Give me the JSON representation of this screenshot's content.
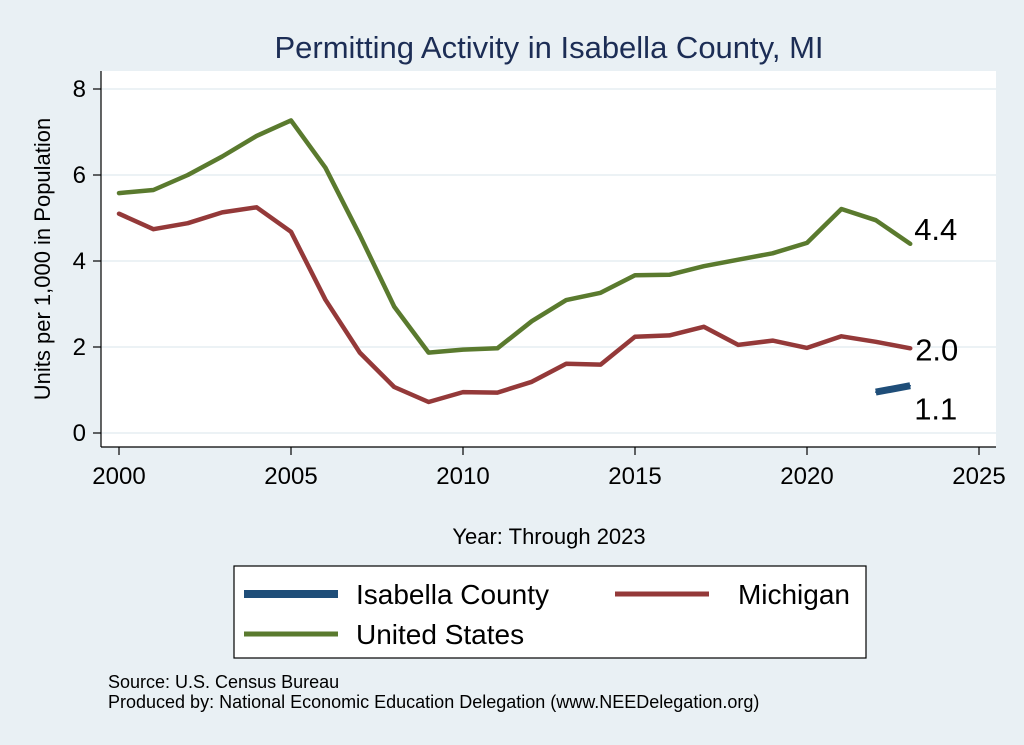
{
  "chart_data": {
    "type": "line",
    "title": "Permitting Activity in Isabella County, MI",
    "xlabel": "Year: Through 2023",
    "ylabel": "Units per 1,000 in Population",
    "xlim": [
      2000,
      2025
    ],
    "ylim": [
      0,
      8
    ],
    "x_ticks": [
      "2000",
      "2005",
      "2010",
      "2015",
      "2020",
      "2025"
    ],
    "y_ticks": [
      "0",
      "2",
      "4",
      "6",
      "8"
    ],
    "grid": true,
    "legend_position": "bottom",
    "series": [
      {
        "name": "Isabella County",
        "color": "#1f4e79",
        "x": [
          2022,
          2023
        ],
        "values": [
          0.95,
          1.1
        ],
        "end_label": "1.1"
      },
      {
        "name": "Michigan",
        "color": "#943939",
        "x": [
          2000,
          2001,
          2002,
          2003,
          2004,
          2005,
          2006,
          2007,
          2008,
          2009,
          2010,
          2011,
          2012,
          2013,
          2014,
          2015,
          2016,
          2017,
          2018,
          2019,
          2020,
          2021,
          2022,
          2023
        ],
        "values": [
          5.1,
          4.74,
          4.88,
          5.13,
          5.25,
          4.68,
          3.1,
          1.87,
          1.07,
          0.72,
          0.95,
          0.94,
          1.19,
          1.61,
          1.59,
          2.24,
          2.27,
          2.47,
          2.05,
          2.15,
          1.98,
          2.25,
          2.12,
          1.97
        ],
        "end_label": "2.0"
      },
      {
        "name": "United States",
        "color": "#5a7a2e",
        "x": [
          2000,
          2001,
          2002,
          2003,
          2004,
          2005,
          2006,
          2007,
          2008,
          2009,
          2010,
          2011,
          2012,
          2013,
          2014,
          2015,
          2016,
          2017,
          2018,
          2019,
          2020,
          2021,
          2022,
          2023
        ],
        "values": [
          5.58,
          5.65,
          6.0,
          6.43,
          6.91,
          7.27,
          6.17,
          4.6,
          2.94,
          1.87,
          1.94,
          1.97,
          2.6,
          3.09,
          3.26,
          3.67,
          3.68,
          3.88,
          4.03,
          4.18,
          4.42,
          5.21,
          4.95,
          4.4
        ],
        "end_label": "4.4"
      }
    ],
    "source": "Source: U.S. Census Bureau",
    "produced_by": "Produced by: National Economic Education Delegation (www.NEEDelegation.org)"
  }
}
